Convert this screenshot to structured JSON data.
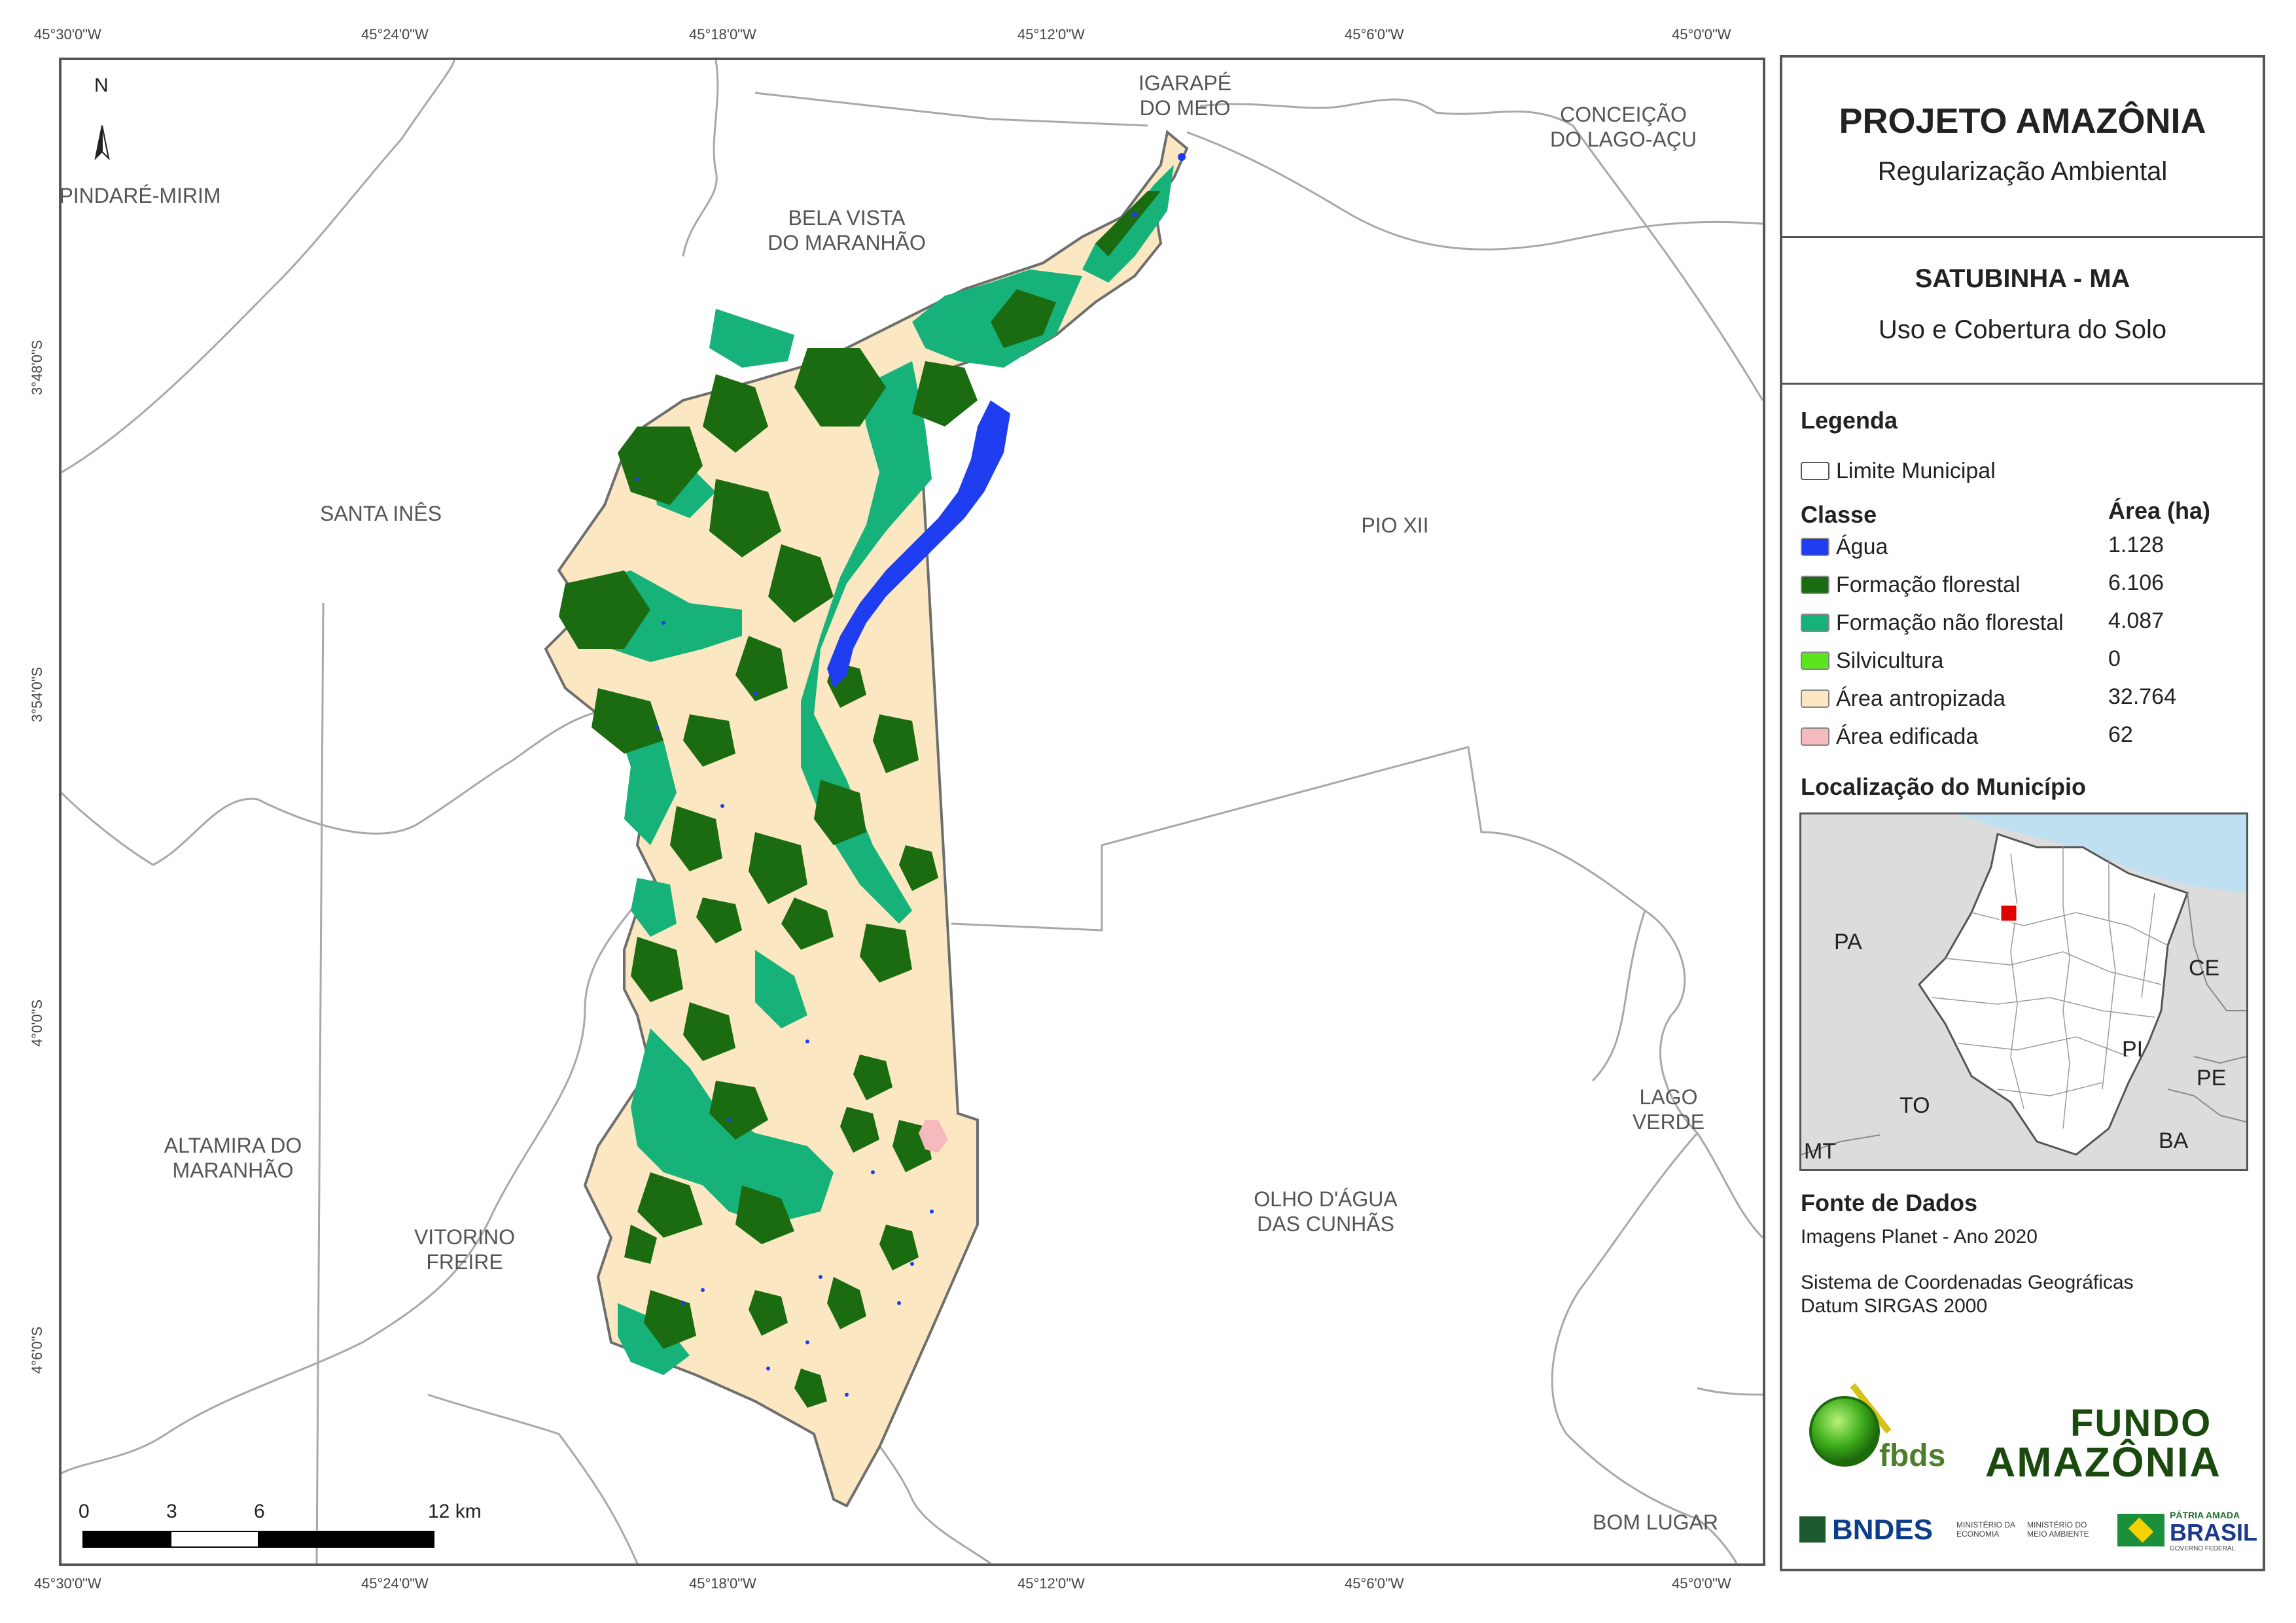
{
  "coords": {
    "top_lon": [
      "45°30'0\"W",
      "45°24'0\"W",
      "45°18'0\"W",
      "45°12'0\"W",
      "45°6'0\"W",
      "45°0'0\"W"
    ],
    "bottom_lon": [
      "45°30'0\"W",
      "45°24'0\"W",
      "45°18'0\"W",
      "45°12'0\"W",
      "45°6'0\"W",
      "45°0'0\"W"
    ],
    "left_lat": [
      "3°48'0\"S",
      "3°54'0\"S",
      "4°0'0\"S",
      "4°6'0\"S"
    ]
  },
  "map": {
    "north_label": "N",
    "places": {
      "pindare": "PINDARÉ-MIRIM",
      "bela_vista_1": "BELA VISTA",
      "bela_vista_2": "DO MARANHÃO",
      "igarape_1": "IGARAPÉ",
      "igarape_2": "DO MEIO",
      "conceicao_1": "CONCEIÇÃO",
      "conceicao_2": "DO LAGO-AÇU",
      "santa_ines": "SANTA INÊS",
      "pio_xii": "PIO XII",
      "altamira_1": "ALTAMIRA DO",
      "altamira_2": "MARANHÃO",
      "vitorino_1": "VITORINO",
      "vitorino_2": "FREIRE",
      "olho_1": "OLHO D'ÁGUA",
      "olho_2": "DAS CUNHÃS",
      "lago_1": "LAGO",
      "lago_2": "VERDE",
      "bom_lugar": "BOM LUGAR"
    },
    "scale": {
      "ticks": [
        "0",
        "3",
        "6",
        "12 km"
      ]
    }
  },
  "panel": {
    "title": "PROJETO AMAZÔNIA",
    "subtitle": "Regularização Ambiental",
    "municipality": "SATUBINHA - MA",
    "theme": "Uso e Cobertura do Solo",
    "legend_title": "Legenda",
    "limit_label": "Limite Municipal",
    "class_header": "Classe",
    "area_header": "Área (ha)",
    "classes": [
      {
        "label": "Água",
        "area": "1.128",
        "color": "#1f3df0"
      },
      {
        "label": "Formação florestal",
        "area": "6.106",
        "color": "#1b6b10"
      },
      {
        "label": "Formação não florestal",
        "area": "4.087",
        "color": "#16b27a"
      },
      {
        "label": "Silvicultura",
        "area": "0",
        "color": "#5be51e"
      },
      {
        "label": "Área antropizada",
        "area": "32.764",
        "color": "#fbe8c3"
      },
      {
        "label": "Área edificada",
        "area": "62",
        "color": "#f6b9bd"
      }
    ],
    "location_title": "Localização do Município",
    "inset_labels": {
      "pa": "PA",
      "ce": "CE",
      "pi": "PI",
      "to": "TO",
      "pe": "PE",
      "ba": "BA",
      "mt": "MT"
    },
    "source_title": "Fonte de Dados",
    "source_line": "Imagens Planet - Ano 2020",
    "crs_line1": "Sistema de Coordenadas Geográficas",
    "crs_line2": "Datum SIRGAS 2000",
    "logos": {
      "fbds": "fbds",
      "fundo_1": "FUNDO",
      "fundo_2": "AMAZÔNIA",
      "bndes": "BNDES",
      "min_eco_1": "MINISTÉRIO DA",
      "min_eco_2": "ECONOMIA",
      "min_amb_1": "MINISTÉRIO DO",
      "min_amb_2": "MEIO AMBIENTE",
      "patria": "PÁTRIA AMADA",
      "brasil": "BRASIL",
      "gov": "GOVERNO FEDERAL"
    }
  }
}
